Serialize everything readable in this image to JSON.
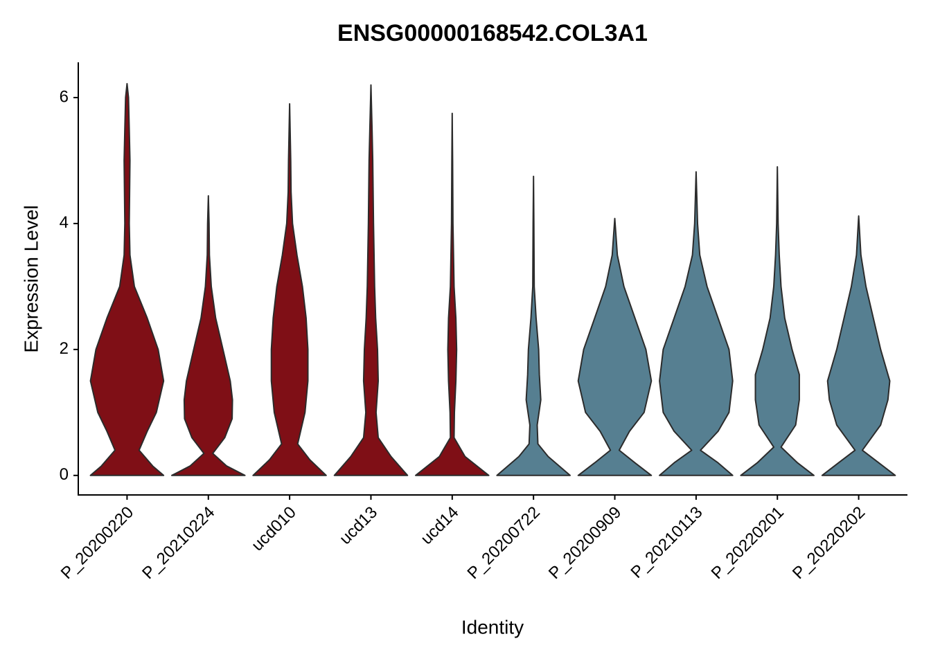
{
  "chart_data": {
    "type": "violin",
    "title": "ENSG00000168542.COL3A1",
    "x_label": "Identity",
    "y_label": "Expression Level",
    "categories": [
      "P_20200220",
      "P_20210224",
      "ucd010",
      "ucd13",
      "ucd14",
      "P_20200722",
      "P_20200909",
      "P_20210113",
      "P_20220201",
      "P_20220202"
    ],
    "colors": [
      "#7f0f16",
      "#7f0f16",
      "#7f0f16",
      "#7f0f16",
      "#7f0f16",
      "#567f91",
      "#567f91",
      "#567f91",
      "#567f91",
      "#567f91"
    ],
    "ylim": [
      -0.31,
      6.56
    ],
    "yticks": [
      0,
      2,
      4,
      6
    ],
    "violins": [
      {
        "y": [
          0,
          0.15,
          0.4,
          0.7,
          1,
          1.5,
          2,
          2.5,
          3,
          3.5,
          4,
          5,
          5.5,
          6,
          6.22
        ],
        "density": [
          1,
          0.7,
          0.33,
          0.55,
          0.8,
          1,
          0.85,
          0.55,
          0.2,
          0.08,
          0.06,
          0.08,
          0.06,
          0.04,
          0
        ]
      },
      {
        "y": [
          0,
          0.15,
          0.35,
          0.6,
          0.9,
          1.2,
          1.5,
          2,
          2.5,
          3,
          3.5,
          4,
          4.44
        ],
        "density": [
          1,
          0.5,
          0.12,
          0.45,
          0.65,
          0.66,
          0.6,
          0.4,
          0.2,
          0.08,
          0.03,
          0.02,
          0
        ]
      },
      {
        "y": [
          0,
          0.25,
          0.5,
          1,
          1.5,
          2,
          2.5,
          3,
          3.5,
          4,
          4.5,
          5,
          5.9
        ],
        "density": [
          1,
          0.55,
          0.22,
          0.42,
          0.5,
          0.5,
          0.45,
          0.35,
          0.2,
          0.08,
          0.04,
          0.03,
          0
        ]
      },
      {
        "y": [
          0,
          0.3,
          0.6,
          1,
          1.5,
          2,
          2.5,
          3,
          4,
          5,
          5.5,
          6.2
        ],
        "density": [
          1,
          0.55,
          0.2,
          0.14,
          0.2,
          0.18,
          0.13,
          0.1,
          0.07,
          0.05,
          0.03,
          0
        ]
      },
      {
        "y": [
          0,
          0.3,
          0.6,
          1,
          1.5,
          2,
          2.5,
          3,
          4,
          5,
          5.75
        ],
        "density": [
          1,
          0.35,
          0.05,
          0.06,
          0.1,
          0.12,
          0.1,
          0.05,
          0.02,
          0.01,
          0
        ]
      },
      {
        "y": [
          0,
          0.3,
          0.5,
          0.8,
          1.2,
          1.6,
          2,
          2.5,
          3,
          4,
          4.75
        ],
        "density": [
          1,
          0.4,
          0.12,
          0.1,
          0.2,
          0.16,
          0.14,
          0.07,
          0.02,
          0.01,
          0
        ]
      },
      {
        "y": [
          0,
          0.2,
          0.4,
          0.7,
          1,
          1.5,
          2,
          2.5,
          3,
          3.5,
          4.08
        ],
        "density": [
          1,
          0.55,
          0.12,
          0.4,
          0.8,
          1,
          0.85,
          0.55,
          0.25,
          0.07,
          0
        ]
      },
      {
        "y": [
          0,
          0.2,
          0.4,
          0.7,
          1,
          1.5,
          2,
          2.5,
          3,
          3.5,
          4,
          4.82
        ],
        "density": [
          1,
          0.6,
          0.12,
          0.6,
          0.9,
          1,
          0.9,
          0.6,
          0.3,
          0.1,
          0.04,
          0
        ]
      },
      {
        "y": [
          0,
          0.2,
          0.45,
          0.8,
          1.2,
          1.6,
          2,
          2.5,
          3,
          3.5,
          4,
          4.9
        ],
        "density": [
          1,
          0.55,
          0.1,
          0.5,
          0.6,
          0.6,
          0.4,
          0.2,
          0.1,
          0.05,
          0.02,
          0
        ]
      },
      {
        "y": [
          0,
          0.2,
          0.4,
          0.8,
          1.2,
          1.5,
          2,
          2.5,
          3,
          3.5,
          4.12
        ],
        "density": [
          1,
          0.55,
          0.1,
          0.6,
          0.8,
          0.85,
          0.6,
          0.4,
          0.2,
          0.06,
          0
        ]
      }
    ]
  }
}
